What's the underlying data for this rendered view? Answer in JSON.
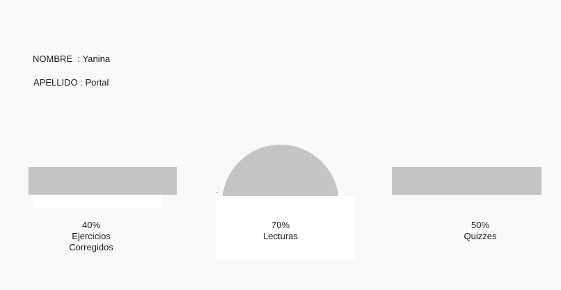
{
  "profile": {
    "nombre_label": "NOMBRE  ",
    "apellido_label": "APELLIDO ",
    "separator": ": ",
    "nombre_value": "Yanina",
    "apellido_value": "Portal"
  },
  "stats": [
    {
      "percent": "40%",
      "label_line1": "Ejercicios",
      "label_line2": "Corregidos",
      "value": 0.4
    },
    {
      "percent": "70%",
      "label_line1": "Lecturas",
      "value": 0.7
    },
    {
      "percent": "50%",
      "label_line1": "Quizzes",
      "value": 0.5
    }
  ],
  "colors": {
    "background": "#f9f9f9",
    "bar_fill": "#c5c5c5",
    "panel": "#ffffff",
    "text": "#1a1a1a"
  }
}
